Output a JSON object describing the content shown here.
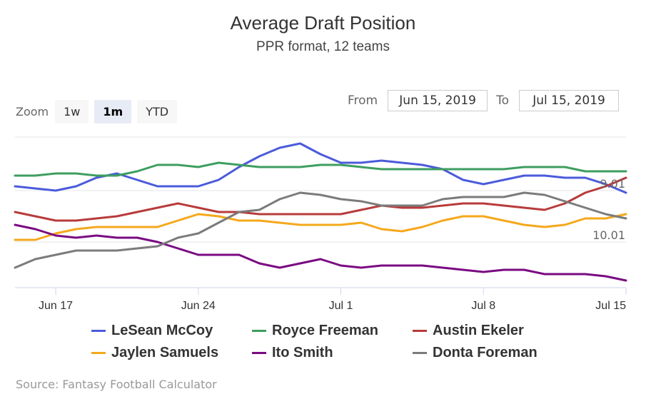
{
  "header": {
    "title": "Average Draft Position",
    "subtitle": "PPR format, 12 teams"
  },
  "range_selector": {
    "zoom_label": "Zoom",
    "buttons": [
      {
        "label": "1w",
        "active": false
      },
      {
        "label": "1m",
        "active": true
      },
      {
        "label": "YTD",
        "active": false
      }
    ],
    "from_label": "From",
    "from_value": "Jun 15, 2019",
    "to_label": "To",
    "to_value": "Jul 15, 2019"
  },
  "source": "Source: Fantasy Football Calculator",
  "chart_data": {
    "type": "line",
    "title": "Average Draft Position",
    "subtitle": "PPR format, 12 teams",
    "xlabel": "",
    "ylabel": "",
    "x_start": "Jun 15, 2019",
    "x_end": "Jul 15, 2019",
    "x": [
      "Jun 15",
      "Jun 16",
      "Jun 17",
      "Jun 18",
      "Jun 19",
      "Jun 20",
      "Jun 21",
      "Jun 22",
      "Jun 23",
      "Jun 24",
      "Jun 25",
      "Jun 26",
      "Jun 27",
      "Jun 28",
      "Jun 29",
      "Jun 30",
      "Jul 1",
      "Jul 2",
      "Jul 3",
      "Jul 4",
      "Jul 5",
      "Jul 6",
      "Jul 7",
      "Jul 8",
      "Jul 9",
      "Jul 10",
      "Jul 11",
      "Jul 12",
      "Jul 13",
      "Jul 14",
      "Jul 15"
    ],
    "x_ticks": [
      "Jun 17",
      "Jun 24",
      "Jul 1",
      "Jul 8",
      "Jul 15"
    ],
    "y_unit": "overall pick number (12-team rounds; 97 = 9.01, 109 = 10.01)",
    "y_reversed": false,
    "y_ticks": [
      {
        "value": 97,
        "label": "9.01"
      },
      {
        "value": 109,
        "label": "10.01"
      }
    ],
    "ylim": [
      84.5,
      120
    ],
    "grid": true,
    "legend_position": "bottom",
    "series": [
      {
        "name": "LeSean McCoy",
        "color": "#4b5bdb",
        "values": [
          96,
          96.5,
          97,
          96,
          94,
          93,
          94.5,
          96,
          96,
          96,
          94.5,
          91.5,
          89,
          87,
          86,
          88.5,
          90.5,
          90.5,
          90,
          90.5,
          91,
          92,
          94.5,
          95.5,
          94.5,
          93.5,
          93.5,
          94,
          94,
          95.5,
          97.5
        ]
      },
      {
        "name": "Royce Freeman",
        "color": "#3e9e5f",
        "values": [
          93.5,
          93.5,
          93,
          93,
          93.5,
          93.5,
          92.5,
          91,
          91,
          91.5,
          90.5,
          91,
          91.5,
          91.5,
          91.5,
          91,
          91,
          91.5,
          92,
          92,
          92,
          92,
          92,
          92,
          92,
          91.5,
          91.5,
          91.5,
          92.5,
          92.5,
          92.5
        ]
      },
      {
        "name": "Austin Ekeler",
        "color": "#b83b3b",
        "values": [
          102,
          103,
          104,
          104,
          103.5,
          103,
          102,
          101,
          100,
          101,
          102,
          102,
          102.5,
          102.5,
          102.5,
          102.5,
          102.5,
          101.5,
          100.5,
          101,
          101,
          100.5,
          100,
          100,
          100.5,
          101,
          101.5,
          100,
          97.5,
          96,
          94
        ]
      },
      {
        "name": "Jaylen Samuels",
        "color": "#f5a81c",
        "values": [
          108.5,
          108.5,
          107,
          106,
          105.5,
          105.5,
          105.5,
          105.5,
          104,
          102.5,
          103,
          104,
          104,
          104.5,
          105,
          105,
          105,
          104.5,
          106,
          106.5,
          105.5,
          104,
          103,
          103,
          104,
          105,
          105.5,
          105,
          103.5,
          103.5,
          102.5
        ]
      },
      {
        "name": "Ito Smith",
        "color": "#7a0a82",
        "values": [
          105,
          106,
          107.5,
          108,
          107.5,
          108,
          108,
          109,
          110.5,
          112,
          112,
          112,
          114,
          115,
          114,
          113,
          114.5,
          115,
          114.5,
          114.5,
          114.5,
          115,
          115.5,
          116,
          115.5,
          115.5,
          116.5,
          116.5,
          116.5,
          117,
          118
        ]
      },
      {
        "name": "Donta Foreman",
        "color": "#7b7b7b",
        "values": [
          115,
          113,
          112,
          111,
          111,
          111,
          110.5,
          110,
          108,
          107,
          104.5,
          102,
          101.5,
          99,
          97.5,
          98,
          99,
          99.5,
          100.5,
          100.5,
          100.5,
          99,
          98.5,
          98.5,
          98.5,
          97.5,
          98,
          99.5,
          101,
          102.5,
          103.5
        ]
      }
    ]
  }
}
